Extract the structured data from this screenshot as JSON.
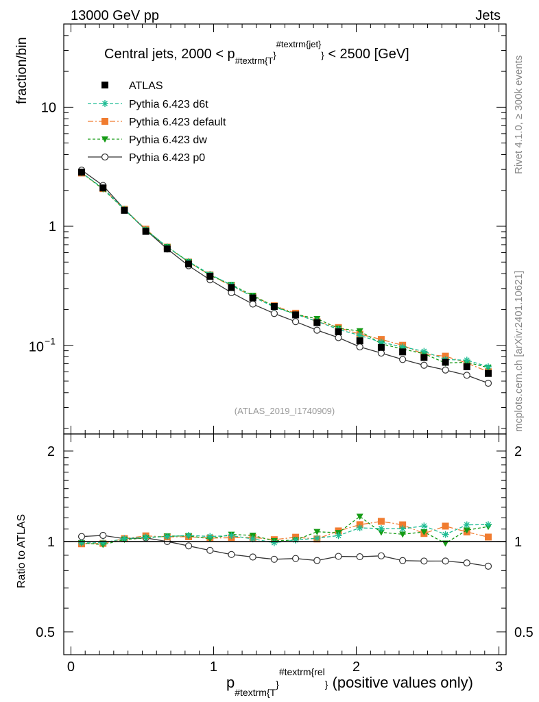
{
  "header": {
    "energy_label": "13000 GeV pp",
    "category_label": "Jets"
  },
  "side_labels": {
    "rivet": "Rivet 4.1.0, ≥ 300k events",
    "mcplots": "mcplots.cern.ch [arXiv:2401.10621]"
  },
  "chart_data": {
    "type": "scatter",
    "title": "Central jets, 2000 < p",
    "title_sub": "#textrm{T",
    "title_sup": "#textrm{jet}",
    "title_tail": " < 2500 [GeV]",
    "analysis_tag": "(ATLAS_2019_I1740909)",
    "ylabel": "fraction/bin",
    "ratio_ylabel": "Ratio to ATLAS",
    "xlabel_main": "p",
    "xlabel_sub": "#textrm{T",
    "xlabel_sup": "#textrm{rel",
    "xlabel_tail": " (positive values only)",
    "xlim": [
      -0.05,
      3.05
    ],
    "ylim": [
      0.018,
      50
    ],
    "ratio_ylim": [
      0.42,
      2.28
    ],
    "log_y": true,
    "x_ticks": [
      "0",
      "1",
      "2",
      "3"
    ],
    "y_ticks": [
      "1",
      "10"
    ],
    "y_tick_base": "10",
    "y_tick_exp": "−1",
    "ratio_ticks": [
      "0.5",
      "1",
      "2"
    ],
    "x": [
      0.075,
      0.225,
      0.375,
      0.525,
      0.675,
      0.825,
      0.975,
      1.125,
      1.275,
      1.425,
      1.575,
      1.725,
      1.875,
      2.025,
      2.175,
      2.325,
      2.475,
      2.625,
      2.775,
      2.925
    ],
    "series": [
      {
        "name": "ATLAS",
        "color": "#000000",
        "marker": "square",
        "values": [
          2.85,
          2.1,
          1.36,
          0.905,
          0.645,
          0.482,
          0.38,
          0.306,
          0.25,
          0.212,
          0.18,
          0.155,
          0.13,
          0.109,
          0.096,
          0.088,
          0.079,
          0.072,
          0.066,
          0.058
        ]
      },
      {
        "name": "Pythia 6.423 d6t",
        "color": "#1ebc93",
        "marker": "star",
        "dash": "5,3",
        "values": [
          2.82,
          2.08,
          1.39,
          0.935,
          0.67,
          0.505,
          0.395,
          0.32,
          0.255,
          0.21,
          0.182,
          0.159,
          0.136,
          0.121,
          0.106,
          0.097,
          0.089,
          0.076,
          0.075,
          0.066
        ]
      },
      {
        "name": "Pythia 6.423 default",
        "color": "#f07c30",
        "marker": "square",
        "dash": "8,3,2,3",
        "values": [
          2.8,
          2.07,
          1.39,
          0.945,
          0.668,
          0.5,
          0.39,
          0.315,
          0.258,
          0.215,
          0.186,
          0.158,
          0.141,
          0.124,
          0.112,
          0.1,
          0.084,
          0.081,
          0.071,
          0.06
        ]
      },
      {
        "name": "Pythia 6.423 dw",
        "color": "#159b15",
        "marker": "triangle-down",
        "dash": "4,3",
        "values": [
          2.82,
          2.05,
          1.38,
          0.93,
          0.672,
          0.503,
          0.388,
          0.323,
          0.262,
          0.213,
          0.182,
          0.167,
          0.139,
          0.132,
          0.103,
          0.093,
          0.085,
          0.071,
          0.072,
          0.065
        ]
      },
      {
        "name": "Pythia 6.423 p0",
        "color": "#333333",
        "marker": "circle-open",
        "values": [
          2.96,
          2.2,
          1.39,
          0.93,
          0.645,
          0.466,
          0.355,
          0.277,
          0.222,
          0.185,
          0.158,
          0.134,
          0.116,
          0.097,
          0.086,
          0.076,
          0.068,
          0.062,
          0.056,
          0.048
        ]
      }
    ]
  }
}
